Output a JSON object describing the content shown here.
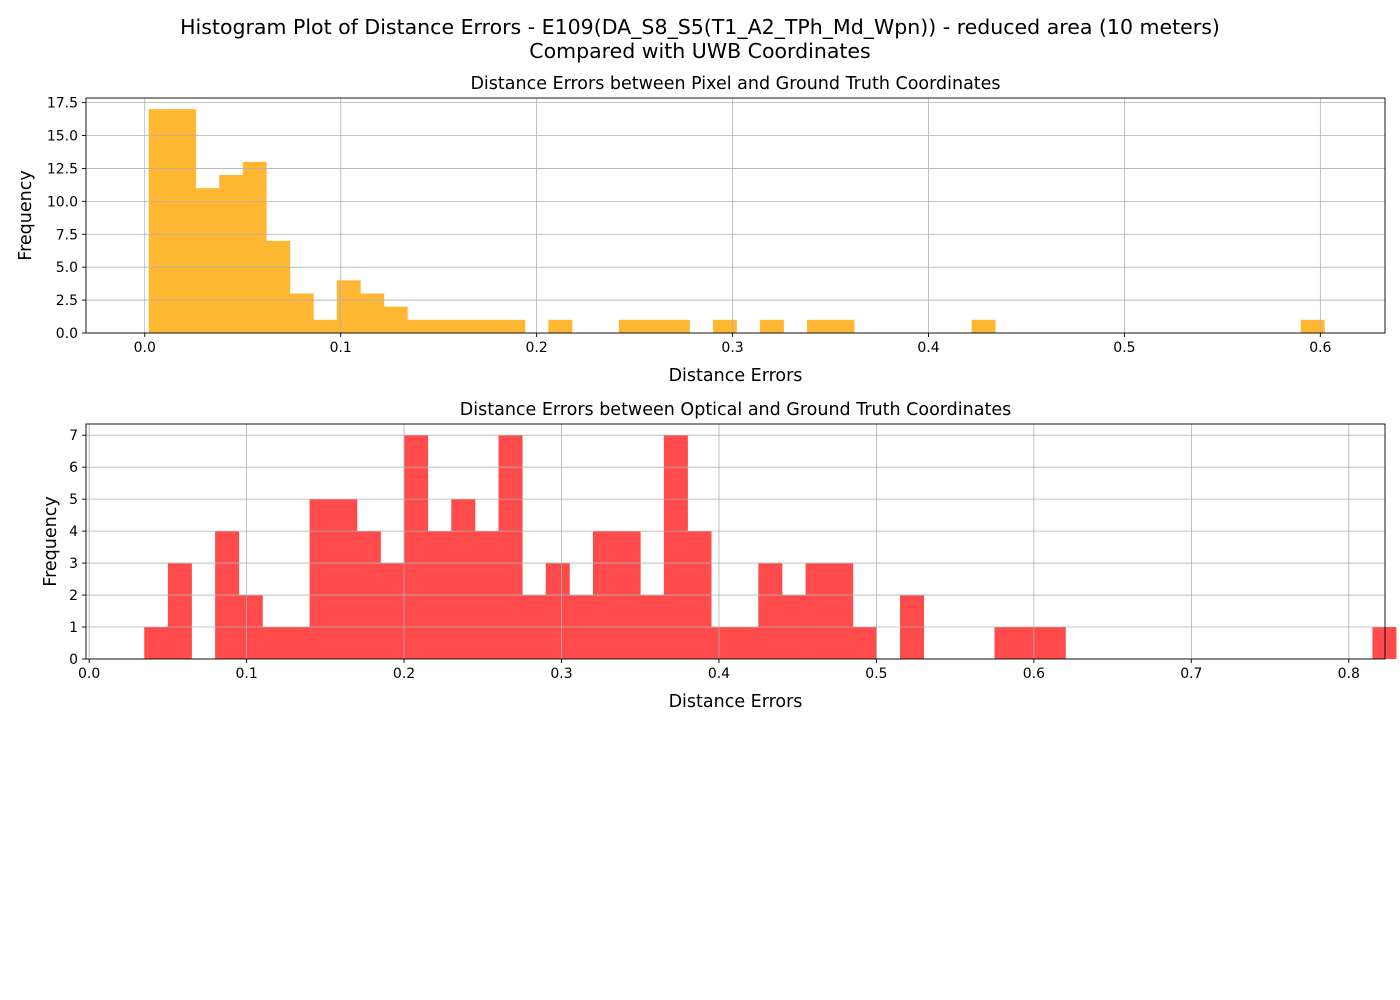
{
  "figure": {
    "title_line1": "Histogram Plot of Distance Errors - E109(DA_S8_S5(T1_A2_TPh_Md_Wpn)) - reduced area (10 meters)",
    "title_line2": "Compared with UWB Coordinates"
  },
  "chart_data": [
    {
      "type": "bar",
      "title": "Distance Errors between Pixel and Ground Truth Coordinates",
      "xlabel": "Distance Errors",
      "ylabel": "Frequency",
      "color": "#ffb732",
      "xlim": [
        -0.03,
        0.633
      ],
      "ylim": [
        0,
        17.85
      ],
      "xticks": [
        "0.0",
        "0.1",
        "0.2",
        "0.3",
        "0.4",
        "0.5",
        "0.6"
      ],
      "yticks": [
        "0.0",
        "2.5",
        "5.0",
        "7.5",
        "10.0",
        "12.5",
        "15.0",
        "17.5"
      ],
      "grid": true,
      "bin_start": 0.002,
      "bin_width": 0.012,
      "values": [
        17,
        17,
        11,
        12,
        13,
        7,
        3,
        1,
        4,
        3,
        2,
        1,
        1,
        1,
        1,
        1,
        0,
        1,
        0,
        0,
        1,
        1,
        1,
        0,
        1,
        0,
        1,
        0,
        1,
        1,
        0,
        0,
        0,
        0,
        0,
        1,
        0,
        0,
        0,
        0,
        0,
        0,
        0,
        0,
        0,
        0,
        0,
        0,
        0,
        1
      ]
    },
    {
      "type": "bar",
      "title": "Distance Errors between Optical and Ground Truth Coordinates",
      "xlabel": "Distance Errors",
      "ylabel": "Frequency",
      "color": "#ff4b4b",
      "xlim": [
        -0.002,
        0.823
      ],
      "ylim": [
        0,
        7.35
      ],
      "xticks": [
        "0.0",
        "0.1",
        "0.2",
        "0.3",
        "0.4",
        "0.5",
        "0.6",
        "0.7",
        "0.8"
      ],
      "yticks": [
        "0",
        "1",
        "2",
        "3",
        "4",
        "5",
        "6",
        "7"
      ],
      "grid": true,
      "bin_start": 0.035,
      "bin_width": 0.015,
      "values": [
        1,
        3,
        0,
        4,
        2,
        1,
        1,
        5,
        5,
        4,
        3,
        7,
        4,
        5,
        4,
        7,
        2,
        3,
        2,
        4,
        4,
        2,
        7,
        4,
        1,
        1,
        3,
        2,
        3,
        3,
        1,
        0,
        2,
        0,
        0,
        0,
        1,
        1,
        1,
        0,
        0,
        0,
        0,
        0,
        0,
        0,
        0,
        0,
        0,
        0,
        0,
        0,
        1
      ]
    }
  ]
}
